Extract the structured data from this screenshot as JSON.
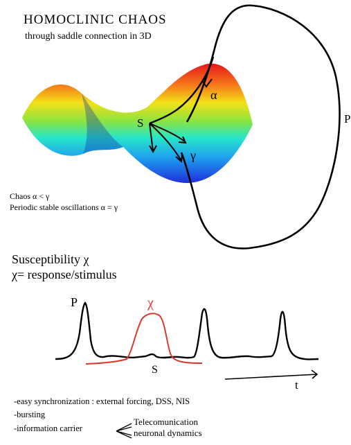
{
  "title": "HOMOCLINIC CHAOS",
  "subtitle": "through saddle connection in 3D",
  "labels": {
    "saddle": "S",
    "alpha": "α",
    "gamma": "γ",
    "orbit": "P"
  },
  "conditions": [
    "Chaos α < γ",
    "Periodic stable oscillations α = γ"
  ],
  "susceptibility": {
    "heading": "Susceptibility χ",
    "definition": "χ= response/stimulus"
  },
  "trace_labels": {
    "peak": "P",
    "chi": "χ",
    "saddle": "S",
    "time": "t"
  },
  "notes": [
    "-easy synchronization : external forcing, DSS, NIS",
    "-bursting",
    "-information carrier"
  ],
  "carrier_branches": [
    "Telecomunication",
    "neuronal dynamics"
  ],
  "colors": {
    "chi_curve": "#d93a2b",
    "trajectory": "#000000"
  }
}
